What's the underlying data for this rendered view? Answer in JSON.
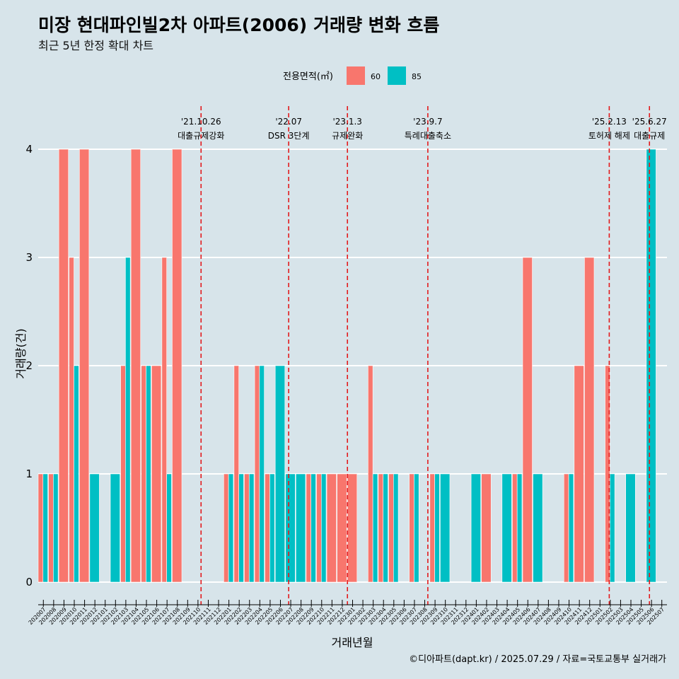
{
  "chart_data": {
    "type": "bar",
    "title": "미장 현대파인빌2차 아파트(2006) 거래량 변화 흐름",
    "subtitle": "최근 5년 한정 확대 차트",
    "xlabel": "거래년월",
    "ylabel": "거래량(건)",
    "legend_title": "전용면적(㎡)",
    "legend_position": "top",
    "ylim": [
      0,
      4
    ],
    "yticks": [
      0,
      1,
      2,
      3,
      4
    ],
    "categories": [
      "202007",
      "202008",
      "202009",
      "202010",
      "202011",
      "202012",
      "202101",
      "202102",
      "202103",
      "202104",
      "202105",
      "202106",
      "202107",
      "202108",
      "202109",
      "202110",
      "202111",
      "202112",
      "202201",
      "202202",
      "202203",
      "202204",
      "202205",
      "202206",
      "202207",
      "202208",
      "202209",
      "202210",
      "202211",
      "202212",
      "202301",
      "202302",
      "202303",
      "202304",
      "202305",
      "202306",
      "202307",
      "202308",
      "202309",
      "202310",
      "202311",
      "202312",
      "202401",
      "202402",
      "202403",
      "202404",
      "202405",
      "202406",
      "202407",
      "202408",
      "202409",
      "202410",
      "202411",
      "202412",
      "202501",
      "202502",
      "202503",
      "202504",
      "202505",
      "202506",
      "202507"
    ],
    "series": [
      {
        "name": "60",
        "color": "#f8766d",
        "values": [
          1,
          1,
          4,
          3,
          4,
          0,
          0,
          0,
          2,
          4,
          2,
          2,
          3,
          4,
          0,
          0,
          0,
          0,
          1,
          2,
          1,
          2,
          1,
          0,
          0,
          0,
          1,
          1,
          1,
          1,
          1,
          0,
          2,
          1,
          1,
          0,
          1,
          0,
          1,
          0,
          0,
          0,
          0,
          1,
          0,
          0,
          1,
          3,
          0,
          0,
          0,
          1,
          2,
          3,
          0,
          2,
          0,
          0,
          0,
          0,
          0
        ]
      },
      {
        "name": "85",
        "color": "#00bfc4",
        "values": [
          1,
          1,
          0,
          2,
          0,
          1,
          0,
          1,
          3,
          0,
          2,
          0,
          1,
          0,
          0,
          0,
          0,
          0,
          1,
          1,
          1,
          2,
          1,
          2,
          1,
          1,
          1,
          1,
          0,
          0,
          0,
          0,
          1,
          1,
          1,
          0,
          1,
          0,
          1,
          1,
          0,
          0,
          1,
          0,
          0,
          1,
          1,
          0,
          1,
          0,
          0,
          1,
          0,
          0,
          0,
          1,
          0,
          1,
          0,
          4,
          0
        ]
      }
    ],
    "annotations": [
      {
        "x": 15.8,
        "date": "'21.10.26",
        "label": "대출규제강화"
      },
      {
        "x": 24.3,
        "date": "'22.07",
        "label": "DSR 3단계"
      },
      {
        "x": 30.0,
        "date": "'23.1.3",
        "label": "규제완화"
      },
      {
        "x": 37.8,
        "date": "'23.9.7",
        "label": "특례대출축소"
      },
      {
        "x": 55.4,
        "date": "'25.2.13",
        "label": "토허제 해제"
      },
      {
        "x": 59.3,
        "date": "'25.6.27",
        "label": "대출규제"
      }
    ],
    "caption": "©디아파트(dapt.kr) / 2025.07.29 / 자료=국토교통부 실거래가"
  }
}
